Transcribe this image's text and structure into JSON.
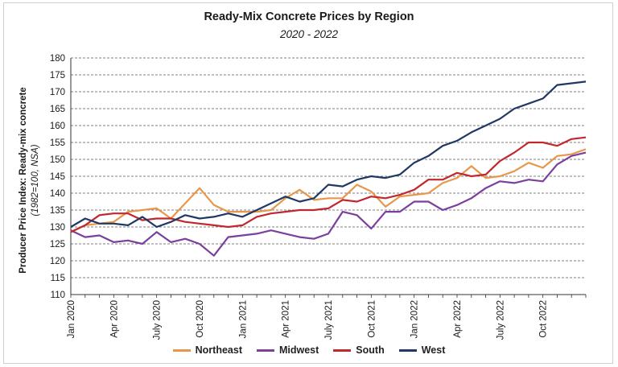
{
  "chart_data": {
    "type": "line",
    "title": "Ready-Mix Concrete Prices by Region",
    "subtitle": "2020 - 2022",
    "ylabel_line1": "Producer Price Index: Ready-mix concrete",
    "ylabel_line2": "(1982=100, NSA)",
    "xlabel": "",
    "ylim": [
      110,
      180
    ],
    "yticks": [
      110,
      115,
      120,
      125,
      130,
      135,
      140,
      145,
      150,
      155,
      160,
      165,
      170,
      175,
      180
    ],
    "x_tick_labels": [
      {
        "index": 0,
        "label": "Jan 2020"
      },
      {
        "index": 3,
        "label": "Apr 2020"
      },
      {
        "index": 6,
        "label": "July 2020"
      },
      {
        "index": 9,
        "label": "Oct 2020"
      },
      {
        "index": 12,
        "label": "Jan 2021"
      },
      {
        "index": 15,
        "label": "Apr 2021"
      },
      {
        "index": 18,
        "label": "July 2021"
      },
      {
        "index": 21,
        "label": "Oct 2021"
      },
      {
        "index": 24,
        "label": "Jan 2022"
      },
      {
        "index": 27,
        "label": "Apr 2022"
      },
      {
        "index": 30,
        "label": "July 2022"
      },
      {
        "index": 33,
        "label": "Oct 2022"
      }
    ],
    "grid": "horizontal-dashed",
    "legend_position": "bottom",
    "series": [
      {
        "name": "Northeast",
        "color": "#E8974A",
        "values": [
          128.5,
          130.5,
          131.0,
          131.5,
          134.5,
          135.0,
          135.5,
          132.5,
          137.0,
          141.5,
          136.5,
          134.5,
          134.5,
          134.5,
          135.0,
          138.5,
          141.0,
          138.0,
          138.5,
          138.5,
          142.5,
          140.5,
          136.0,
          139.0,
          139.5,
          140.0,
          143.0,
          144.5,
          148.0,
          144.5,
          145.0,
          146.5,
          149.0,
          147.5,
          151.0,
          151.5,
          153.0
        ]
      },
      {
        "name": "Midwest",
        "color": "#7B3F9E",
        "values": [
          129.0,
          127.0,
          127.5,
          125.5,
          126.0,
          125.0,
          128.5,
          125.5,
          126.5,
          125.0,
          121.5,
          127.0,
          127.5,
          128.0,
          129.0,
          128.0,
          127.0,
          126.5,
          128.0,
          134.5,
          133.5,
          129.5,
          134.5,
          134.5,
          137.5,
          137.5,
          135.0,
          136.5,
          138.5,
          141.5,
          143.5,
          143.0,
          144.0,
          143.5,
          148.5,
          151.0,
          152.0
        ]
      },
      {
        "name": "South",
        "color": "#C0282D",
        "values": [
          128.5,
          130.5,
          133.5,
          134.0,
          134.0,
          132.0,
          132.5,
          132.5,
          131.5,
          131.0,
          130.5,
          130.0,
          130.5,
          133.0,
          134.0,
          134.5,
          135.0,
          135.0,
          135.5,
          138.0,
          137.5,
          139.0,
          138.5,
          139.5,
          141.0,
          144.0,
          144.0,
          146.0,
          145.0,
          145.5,
          149.5,
          152.0,
          155.0,
          155.0,
          154.0,
          156.0,
          156.5
        ]
      },
      {
        "name": "West",
        "color": "#1F3864",
        "values": [
          130.0,
          132.5,
          131.0,
          131.0,
          130.5,
          133.0,
          130.0,
          131.5,
          133.5,
          132.5,
          133.0,
          134.0,
          133.0,
          135.0,
          137.0,
          139.0,
          137.5,
          138.5,
          142.5,
          142.0,
          144.0,
          145.0,
          144.5,
          145.5,
          149.0,
          151.0,
          154.0,
          155.5,
          158.0,
          160.0,
          162.0,
          165.0,
          166.5,
          168.0,
          172.0,
          172.5,
          173.0
        ]
      }
    ]
  }
}
